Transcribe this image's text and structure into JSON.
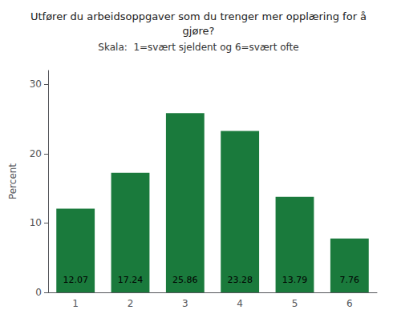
{
  "chart_data": {
    "type": "bar",
    "title": "Utfører du arbeidsoppgaver som du trenger mer opplæring for å\ngjøre?",
    "subtitle": "Skala:  1=svært sjeldent og 6=svært ofte",
    "ylabel": "Percent",
    "categories": [
      "1",
      "2",
      "3",
      "4",
      "5",
      "6"
    ],
    "values": [
      12.07,
      17.24,
      25.86,
      23.28,
      13.79,
      7.76
    ],
    "color": "#1a7a3c",
    "ylim": [
      0,
      32
    ],
    "yticks": [
      0,
      10,
      20,
      30
    ],
    "grid": false,
    "data_labels": true
  }
}
